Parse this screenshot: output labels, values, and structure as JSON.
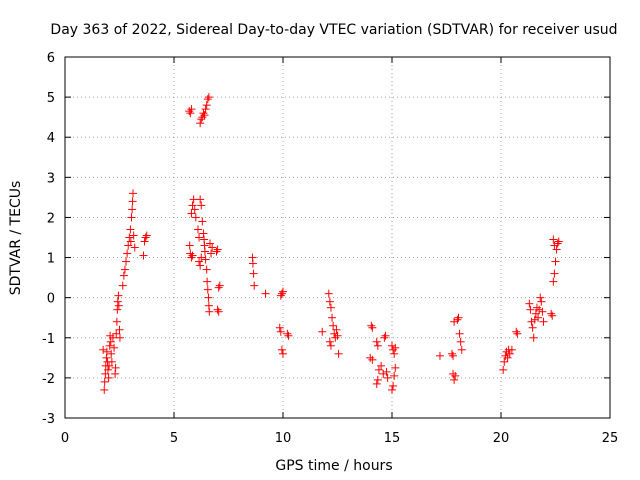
{
  "chart_data": {
    "type": "scatter",
    "title": "Day 363 of 2022, Sidereal Day-to-day VTEC variation (SDTVAR) for receiver usud",
    "xlabel": "GPS time / hours",
    "ylabel": "SDTVAR / TECUs",
    "xlim": [
      0,
      25
    ],
    "ylim": [
      -3,
      6
    ],
    "xticks": [
      0,
      5,
      10,
      15,
      20,
      25
    ],
    "yticks": [
      -3,
      -2,
      -1,
      0,
      1,
      2,
      3,
      4,
      5,
      6
    ],
    "grid": true,
    "marker": "+",
    "marker_color": "#ff0000",
    "series": [
      {
        "name": "SDTVAR",
        "points": [
          [
            1.75,
            -1.3
          ],
          [
            1.8,
            -2.3
          ],
          [
            1.82,
            -2.1
          ],
          [
            1.85,
            -1.9
          ],
          [
            1.87,
            -1.7
          ],
          [
            1.9,
            -1.5
          ],
          [
            1.92,
            -1.35
          ],
          [
            1.95,
            -1.6
          ],
          [
            1.97,
            -1.8
          ],
          [
            2.0,
            -2.0
          ],
          [
            2.02,
            -1.7
          ],
          [
            2.05,
            -1.2
          ],
          [
            2.07,
            -0.95
          ],
          [
            2.1,
            -1.1
          ],
          [
            2.12,
            -1.4
          ],
          [
            2.15,
            -1.6
          ],
          [
            2.2,
            -1.0
          ],
          [
            2.25,
            -1.25
          ],
          [
            2.3,
            -1.9
          ],
          [
            2.32,
            -1.75
          ],
          [
            2.35,
            -0.9
          ],
          [
            2.38,
            -0.6
          ],
          [
            2.4,
            -0.3
          ],
          [
            2.42,
            -0.1
          ],
          [
            2.45,
            0.05
          ],
          [
            2.47,
            -0.2
          ],
          [
            2.5,
            -0.8
          ],
          [
            2.52,
            -1.0
          ],
          [
            2.65,
            0.3
          ],
          [
            2.7,
            0.55
          ],
          [
            2.75,
            0.7
          ],
          [
            2.8,
            0.9
          ],
          [
            2.85,
            1.1
          ],
          [
            2.9,
            1.3
          ],
          [
            2.95,
            1.5
          ],
          [
            3.0,
            1.7
          ],
          [
            3.02,
            1.4
          ],
          [
            3.05,
            2.0
          ],
          [
            3.08,
            2.2
          ],
          [
            3.1,
            2.4
          ],
          [
            3.12,
            2.6
          ],
          [
            3.15,
            1.55
          ],
          [
            3.2,
            1.25
          ],
          [
            3.6,
            1.05
          ],
          [
            3.65,
            1.4
          ],
          [
            3.7,
            1.5
          ],
          [
            3.75,
            1.55
          ],
          [
            5.7,
            4.65
          ],
          [
            5.75,
            4.6
          ],
          [
            5.8,
            4.7
          ],
          [
            5.72,
            1.3
          ],
          [
            5.75,
            1.1
          ],
          [
            5.8,
            1.0
          ],
          [
            5.85,
            1.05
          ],
          [
            5.8,
            2.1
          ],
          [
            5.85,
            2.3
          ],
          [
            5.9,
            2.45
          ],
          [
            5.95,
            2.2
          ],
          [
            6.0,
            2.0
          ],
          [
            6.2,
            4.35
          ],
          [
            6.25,
            4.45
          ],
          [
            6.3,
            4.5
          ],
          [
            6.35,
            4.6
          ],
          [
            6.4,
            4.55
          ],
          [
            6.45,
            4.7
          ],
          [
            6.5,
            4.8
          ],
          [
            6.55,
            4.95
          ],
          [
            6.6,
            5.0
          ],
          [
            6.1,
            1.7
          ],
          [
            6.15,
            1.5
          ],
          [
            6.2,
            2.45
          ],
          [
            6.25,
            2.3
          ],
          [
            6.3,
            1.9
          ],
          [
            6.35,
            1.6
          ],
          [
            6.38,
            1.45
          ],
          [
            6.4,
            1.3
          ],
          [
            6.42,
            1.15
          ],
          [
            6.45,
            0.95
          ],
          [
            6.5,
            0.7
          ],
          [
            6.52,
            0.4
          ],
          [
            6.55,
            0.2
          ],
          [
            6.58,
            0.0
          ],
          [
            6.6,
            -0.2
          ],
          [
            6.62,
            -0.35
          ],
          [
            6.65,
            1.35
          ],
          [
            6.7,
            1.1
          ],
          [
            6.75,
            1.25
          ],
          [
            6.15,
            0.9
          ],
          [
            6.2,
            0.8
          ],
          [
            6.25,
            1.0
          ],
          [
            6.95,
            1.15
          ],
          [
            7.0,
            1.2
          ],
          [
            7.05,
            0.25
          ],
          [
            7.1,
            0.3
          ],
          [
            7.0,
            -0.3
          ],
          [
            7.05,
            -0.35
          ],
          [
            8.6,
            1.0
          ],
          [
            8.62,
            0.85
          ],
          [
            8.65,
            0.6
          ],
          [
            8.68,
            0.3
          ],
          [
            9.2,
            0.1
          ],
          [
            9.9,
            0.05
          ],
          [
            9.95,
            0.1
          ],
          [
            10.0,
            0.15
          ],
          [
            9.85,
            -0.75
          ],
          [
            9.9,
            -0.85
          ],
          [
            9.95,
            -1.3
          ],
          [
            10.0,
            -1.4
          ],
          [
            10.2,
            -0.9
          ],
          [
            10.25,
            -0.95
          ],
          [
            11.8,
            -0.85
          ],
          [
            12.1,
            0.1
          ],
          [
            12.15,
            -0.1
          ],
          [
            12.2,
            -0.25
          ],
          [
            12.25,
            -0.5
          ],
          [
            12.3,
            -0.7
          ],
          [
            12.35,
            -0.9
          ],
          [
            12.4,
            -1.0
          ],
          [
            12.45,
            -0.8
          ],
          [
            12.5,
            -0.95
          ],
          [
            12.55,
            -1.4
          ],
          [
            12.15,
            -1.1
          ],
          [
            12.2,
            -1.2
          ],
          [
            14.0,
            -1.5
          ],
          [
            14.1,
            -1.55
          ],
          [
            14.05,
            -0.7
          ],
          [
            14.1,
            -0.75
          ],
          [
            14.3,
            -1.1
          ],
          [
            14.35,
            -1.2
          ],
          [
            14.3,
            -2.15
          ],
          [
            14.35,
            -2.05
          ],
          [
            14.4,
            -1.8
          ],
          [
            14.5,
            -1.7
          ],
          [
            14.6,
            -1.9
          ],
          [
            14.65,
            -1.0
          ],
          [
            14.7,
            -0.95
          ],
          [
            14.75,
            -1.85
          ],
          [
            14.8,
            -2.0
          ],
          [
            15.0,
            -2.3
          ],
          [
            15.05,
            -2.2
          ],
          [
            15.1,
            -1.95
          ],
          [
            15.15,
            -1.75
          ],
          [
            15.0,
            -1.2
          ],
          [
            15.05,
            -1.3
          ],
          [
            15.1,
            -1.4
          ],
          [
            15.15,
            -1.25
          ],
          [
            17.2,
            -1.45
          ],
          [
            17.75,
            -1.4
          ],
          [
            17.8,
            -1.45
          ],
          [
            17.85,
            -0.6
          ],
          [
            17.8,
            -1.9
          ],
          [
            17.85,
            -2.05
          ],
          [
            17.9,
            -1.95
          ],
          [
            18.0,
            -0.55
          ],
          [
            18.05,
            -0.5
          ],
          [
            18.1,
            -0.9
          ],
          [
            18.15,
            -1.1
          ],
          [
            18.2,
            -1.3
          ],
          [
            20.1,
            -1.8
          ],
          [
            20.15,
            -1.6
          ],
          [
            20.2,
            -1.45
          ],
          [
            20.25,
            -1.35
          ],
          [
            20.3,
            -1.5
          ],
          [
            20.35,
            -1.3
          ],
          [
            20.4,
            -1.4
          ],
          [
            20.5,
            -1.3
          ],
          [
            20.7,
            -0.85
          ],
          [
            20.75,
            -0.9
          ],
          [
            21.3,
            -0.15
          ],
          [
            21.35,
            -0.3
          ],
          [
            21.4,
            -0.6
          ],
          [
            21.45,
            -0.75
          ],
          [
            21.5,
            -1.0
          ],
          [
            21.55,
            -0.55
          ],
          [
            21.6,
            -0.4
          ],
          [
            21.65,
            -0.25
          ],
          [
            21.7,
            -0.5
          ],
          [
            21.75,
            -0.3
          ],
          [
            21.8,
            0.0
          ],
          [
            21.85,
            -0.1
          ],
          [
            21.9,
            -0.35
          ],
          [
            21.95,
            -0.6
          ],
          [
            22.3,
            -0.4
          ],
          [
            22.35,
            -0.45
          ],
          [
            22.4,
            0.4
          ],
          [
            22.45,
            0.6
          ],
          [
            22.5,
            0.9
          ],
          [
            22.55,
            1.2
          ],
          [
            22.6,
            1.35
          ],
          [
            22.65,
            1.4
          ],
          [
            22.4,
            1.45
          ],
          [
            22.45,
            1.3
          ]
        ]
      }
    ]
  }
}
